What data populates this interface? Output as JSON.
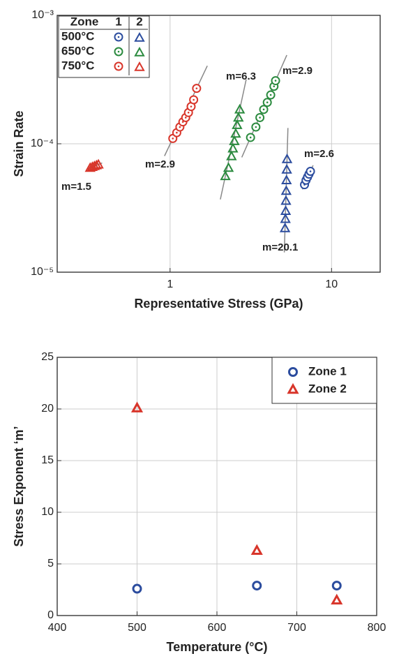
{
  "chart_data": [
    {
      "type": "scatter",
      "x_label": "Representative Stress (GPa)",
      "y_label": "Strain Rate",
      "xlog": true,
      "ylog": true,
      "grid": true,
      "xlim": [
        0.2,
        20
      ],
      "xticks": [
        1,
        10
      ],
      "ylim": [
        1e-05,
        0.001
      ],
      "yticks": [
        {
          "value": 1e-05,
          "label": "10⁻⁵"
        },
        {
          "value": 0.0001,
          "label": "10⁻⁴"
        },
        {
          "value": 0.001,
          "label": "10⁻³"
        }
      ],
      "legend_title": "Zone",
      "zone_labels": [
        "1",
        "2"
      ],
      "legend": "upper left",
      "series": [
        {
          "name": "500°C",
          "color": "#2b4c9e",
          "zones": [
            {
              "x": [
                6.8,
                6.95,
                7.1,
                7.25,
                7.4
              ],
              "y": [
                4.8e-05,
                5.2e-05,
                5.5e-05,
                5.8e-05,
                6.1e-05
              ]
            },
            {
              "x": [
                5.15,
                5.18,
                5.2,
                5.22,
                5.24,
                5.26,
                5.28,
                5.3
              ],
              "y": [
                2.2e-05,
                2.6e-05,
                3e-05,
                3.6e-05,
                4.3e-05,
                5.2e-05,
                6.3e-05,
                7.6e-05
              ]
            }
          ]
        },
        {
          "name": "650°C",
          "color": "#2a8a3e",
          "zones": [
            {
              "x": [
                3.15,
                3.4,
                3.6,
                3.8,
                4.0,
                4.2,
                4.4,
                4.5
              ],
              "y": [
                0.000112,
                0.000135,
                0.00016,
                0.000185,
                0.00021,
                0.00024,
                0.00028,
                0.00031
              ]
            },
            {
              "x": [
                2.2,
                2.3,
                2.4,
                2.45,
                2.5,
                2.55,
                2.6,
                2.65,
                2.7
              ],
              "y": [
                5.6e-05,
                6.5e-05,
                8e-05,
                9.2e-05,
                0.000105,
                0.00012,
                0.00014,
                0.00016,
                0.000185
              ]
            }
          ]
        },
        {
          "name": "750°C",
          "color": "#d8352a",
          "zones": [
            {
              "x": [
                1.04,
                1.1,
                1.15,
                1.2,
                1.25,
                1.3,
                1.35,
                1.4,
                1.46
              ],
              "y": [
                0.00011,
                0.000122,
                0.000135,
                0.000148,
                0.00016,
                0.000175,
                0.000195,
                0.00022,
                0.00027
              ]
            },
            {
              "x": [
                0.32,
                0.33,
                0.34,
                0.35,
                0.36
              ],
              "y": [
                6.5e-05,
                6.6e-05,
                6.7e-05,
                6.8e-05,
                6.9e-05
              ]
            }
          ]
        }
      ],
      "annotations": [
        "m=1.5",
        "m=2.9",
        "m=6.3",
        "m=2.9",
        "m=2.6",
        "m=20.1"
      ]
    },
    {
      "type": "scatter",
      "x_label": "Temperature (°C)",
      "y_label": "Stress Exponent ‘m’",
      "grid": true,
      "legend": "upper right",
      "xlim": [
        400,
        800
      ],
      "xticks": [
        400,
        500,
        600,
        700,
        800
      ],
      "ylim": [
        0,
        25
      ],
      "yticks": [
        0,
        5,
        10,
        15,
        20,
        25
      ],
      "series": [
        {
          "name": "Zone 1",
          "color": "#2b4c9e",
          "marker": "circle",
          "x": [
            500,
            650,
            750
          ],
          "y": [
            2.6,
            2.9,
            2.9
          ]
        },
        {
          "name": "Zone 2",
          "color": "#d8352a",
          "marker": "triangle",
          "x": [
            500,
            650,
            750
          ],
          "y": [
            20.1,
            6.3,
            1.5
          ]
        }
      ]
    }
  ]
}
